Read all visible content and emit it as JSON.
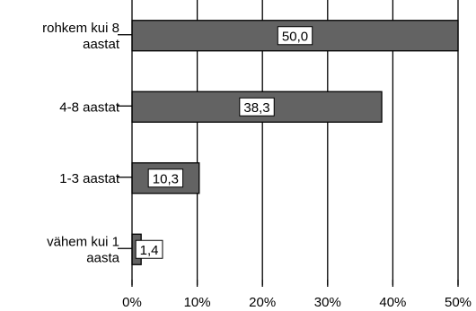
{
  "chart_data": {
    "type": "bar",
    "orientation": "horizontal",
    "categories": [
      [
        "rohkem kui 8",
        "aastat"
      ],
      [
        "4-8 aastat"
      ],
      [
        "1-3 aastat"
      ],
      [
        "vähem kui 1",
        "aasta"
      ]
    ],
    "values": [
      50.0,
      38.3,
      10.3,
      1.4
    ],
    "data_labels": [
      "50,0",
      "38,3",
      "10,3",
      "1,4"
    ],
    "xlim": [
      0,
      50
    ],
    "x_ticks": [
      0,
      10,
      20,
      30,
      40,
      50
    ],
    "x_tick_labels": [
      "0%",
      "10%",
      "20%",
      "30%",
      "40%",
      "50%"
    ],
    "grid": true,
    "bar_color": "#636363",
    "title": "",
    "xlabel": "",
    "ylabel": ""
  }
}
